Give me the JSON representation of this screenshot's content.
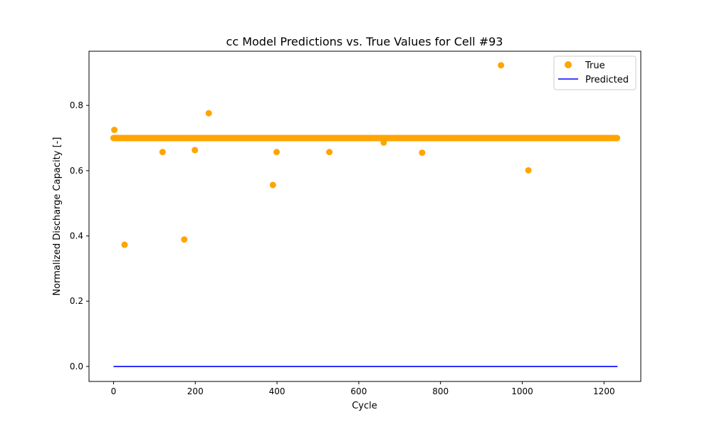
{
  "chart_data": {
    "type": "scatter",
    "title": "cc Model Predictions vs. True Values for Cell #93",
    "xlabel": "Cycle",
    "ylabel": "Normalized Discharge Capacity [-]",
    "xlim": [
      -60,
      1290
    ],
    "ylim": [
      -0.046,
      0.966
    ],
    "xticks": [
      0,
      200,
      400,
      600,
      800,
      1000,
      1200
    ],
    "yticks": [
      0.0,
      0.2,
      0.4,
      0.6,
      0.8
    ],
    "grid": false,
    "legend_position": "top-right",
    "series": [
      {
        "name": "True",
        "kind": "scatter",
        "color": "#ffa500",
        "baseline": {
          "x_start": 0,
          "x_end": 1233,
          "y": 0.7
        },
        "points": [
          {
            "x": 2,
            "y": 0.725
          },
          {
            "x": 27,
            "y": 0.373
          },
          {
            "x": 120,
            "y": 0.657
          },
          {
            "x": 173,
            "y": 0.389
          },
          {
            "x": 199,
            "y": 0.663
          },
          {
            "x": 233,
            "y": 0.776
          },
          {
            "x": 390,
            "y": 0.556
          },
          {
            "x": 399,
            "y": 0.657
          },
          {
            "x": 528,
            "y": 0.657
          },
          {
            "x": 661,
            "y": 0.686
          },
          {
            "x": 755,
            "y": 0.655
          },
          {
            "x": 948,
            "y": 0.923
          },
          {
            "x": 1015,
            "y": 0.601
          }
        ]
      },
      {
        "name": "Predicted",
        "kind": "line",
        "color": "#0000ff",
        "x": [
          0,
          1233
        ],
        "y": [
          0.0,
          0.0
        ]
      }
    ]
  }
}
